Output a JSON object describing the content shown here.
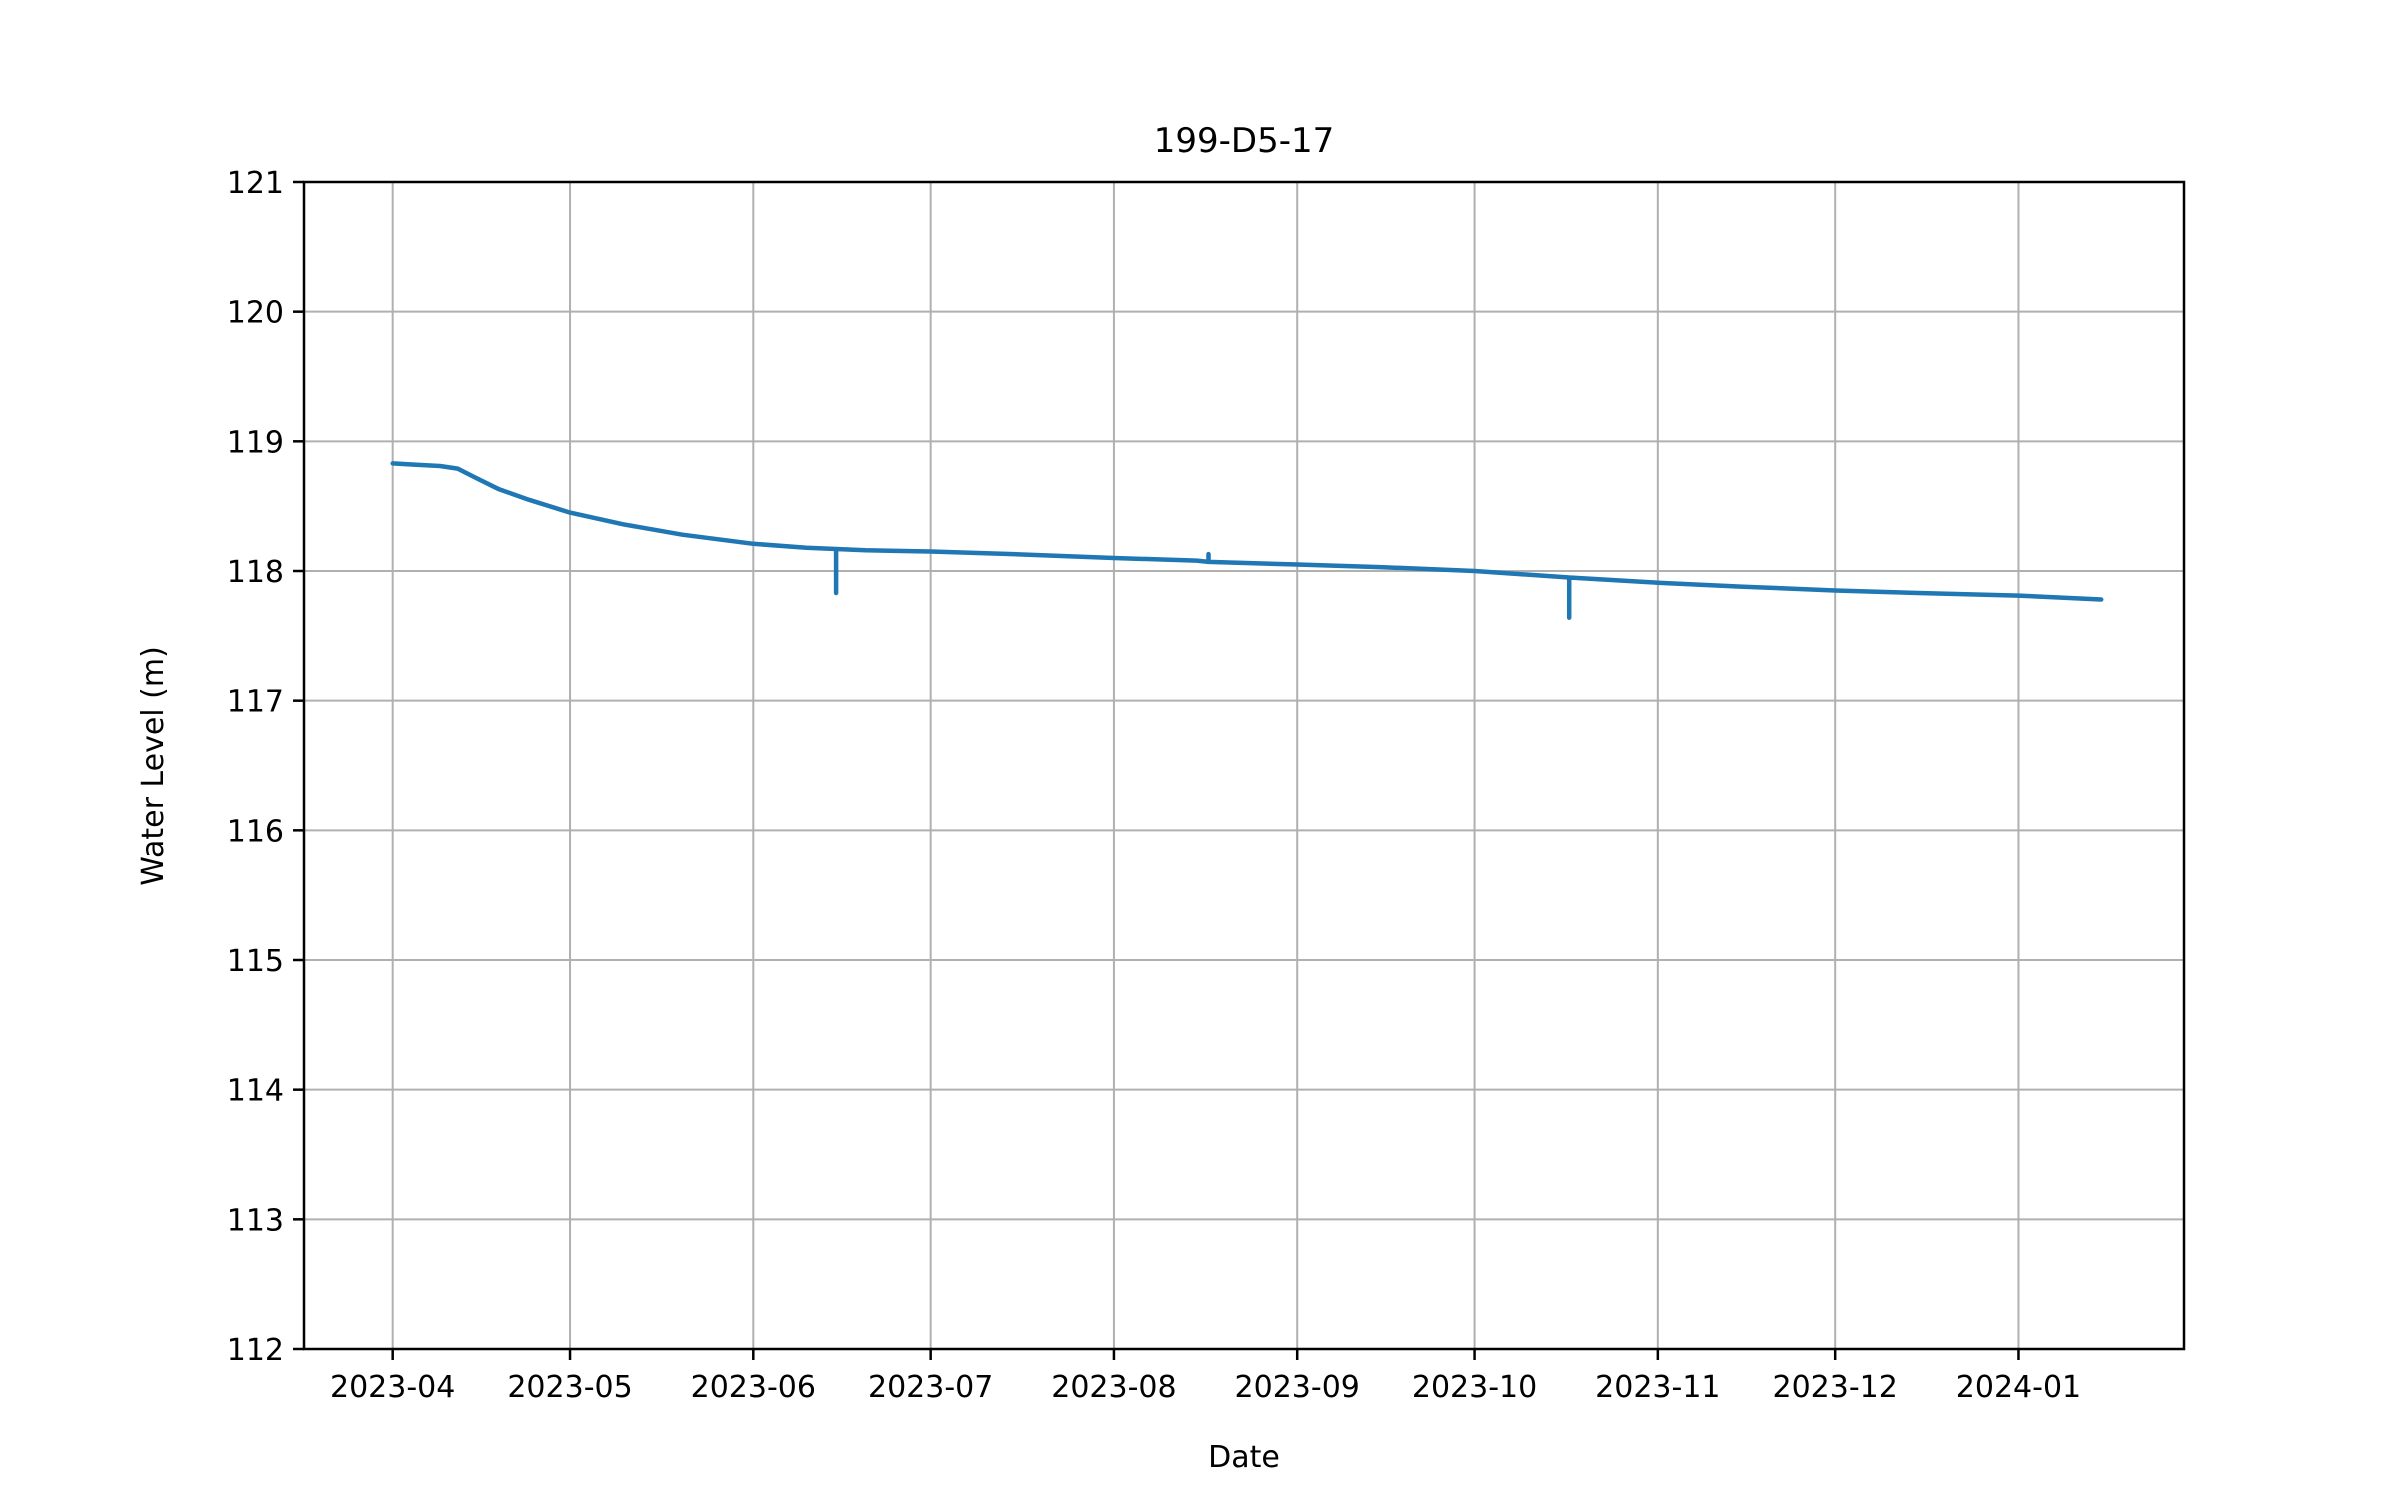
{
  "chart_data": {
    "type": "line",
    "title": "199-D5-17",
    "xlabel": "Date",
    "ylabel": "Water Level (m)",
    "ylim": [
      112,
      121
    ],
    "xlim": [
      "2023-03-17",
      "2024-01-29"
    ],
    "grid": true,
    "x_ticks": [
      "2023-04",
      "2023-05",
      "2023-06",
      "2023-07",
      "2023-08",
      "2023-09",
      "2023-10",
      "2023-11",
      "2023-12",
      "2024-01"
    ],
    "y_ticks": [
      112,
      113,
      114,
      115,
      116,
      117,
      118,
      119,
      120,
      121
    ],
    "series": [
      {
        "color": "#1f77b4",
        "x": [
          "2023-04-01",
          "2023-04-05",
          "2023-04-09",
          "2023-04-12",
          "2023-04-15",
          "2023-04-19",
          "2023-04-24",
          "2023-05-01",
          "2023-05-10",
          "2023-05-20",
          "2023-06-01",
          "2023-06-10",
          "2023-06-15",
          "2023-06-15",
          "2023-06-15",
          "2023-06-20",
          "2023-07-01",
          "2023-07-15",
          "2023-08-01",
          "2023-08-15",
          "2023-08-17",
          "2023-08-17",
          "2023-08-17",
          "2023-09-01",
          "2023-09-15",
          "2023-10-01",
          "2023-10-17",
          "2023-10-17",
          "2023-10-17",
          "2023-11-01",
          "2023-11-15",
          "2023-12-01",
          "2023-12-15",
          "2024-01-01",
          "2024-01-15"
        ],
        "y": [
          118.83,
          118.82,
          118.81,
          118.79,
          118.72,
          118.63,
          118.55,
          118.45,
          118.36,
          118.28,
          118.21,
          118.18,
          118.17,
          117.83,
          118.17,
          118.16,
          118.15,
          118.13,
          118.1,
          118.08,
          118.07,
          118.13,
          118.07,
          118.05,
          118.03,
          118.0,
          117.95,
          117.64,
          117.95,
          117.91,
          117.88,
          117.85,
          117.83,
          117.81,
          117.78
        ]
      }
    ]
  }
}
